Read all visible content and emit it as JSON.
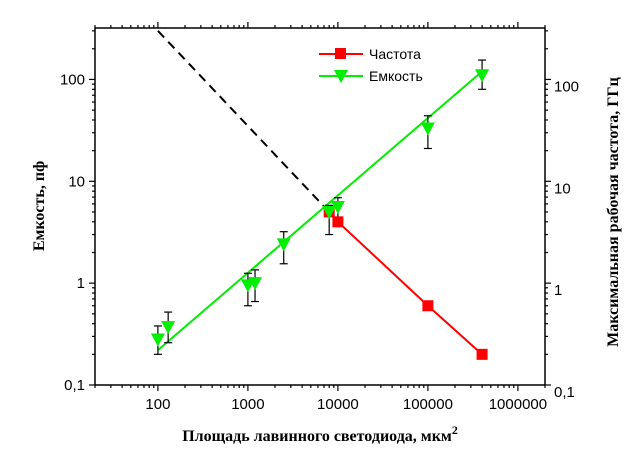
{
  "chart_data": {
    "type": "line",
    "xlabel": "Площадь лавинного светодиода, мкм",
    "xlabel_sup": "2",
    "ylabel": "Емкость, пф",
    "y2label": "Максимальная рабочая частота, ГГц",
    "x_scale": "log",
    "y_scale": "log",
    "y2_scale": "log",
    "xlim": [
      20,
      2000000
    ],
    "ylim": [
      0.1,
      320
    ],
    "y2lim": [
      0.1,
      320
    ],
    "xticks": [
      {
        "value": 100,
        "label": "100"
      },
      {
        "value": 1000,
        "label": "1000"
      },
      {
        "value": 10000,
        "label": "10000"
      },
      {
        "value": 100000,
        "label": "100000"
      },
      {
        "value": 1000000,
        "label": "1000000"
      }
    ],
    "yticks": [
      {
        "value": 0.1,
        "label": "0,1"
      },
      {
        "value": 1,
        "label": "1"
      },
      {
        "value": 10,
        "label": "10"
      },
      {
        "value": 100,
        "label": "100"
      }
    ],
    "y2ticks": [
      {
        "value": 0.1,
        "label": "0,1"
      },
      {
        "value": 1,
        "label": "1"
      },
      {
        "value": 10,
        "label": "10"
      },
      {
        "value": 100,
        "label": "100"
      }
    ],
    "legend_position": "top-right-inside",
    "series": [
      {
        "name": "Частота",
        "axis": "right",
        "color": "#ff0000",
        "marker": "square",
        "x": [
          8000,
          10000,
          100000,
          400000
        ],
        "y": [
          5,
          4,
          0.6,
          0.2
        ]
      },
      {
        "name": "Емкость",
        "axis": "left",
        "color": "#00ee00",
        "marker": "triangle-down",
        "x": [
          100,
          130,
          1000,
          1200,
          2500,
          8000,
          10000,
          100000,
          400000
        ],
        "y": [
          0.28,
          0.37,
          0.95,
          1.0,
          2.4,
          5.0,
          5.6,
          33,
          110
        ],
        "err_low": [
          0.2,
          0.26,
          0.6,
          0.66,
          1.55,
          3.0,
          4.3,
          21,
          80
        ],
        "err_high": [
          0.38,
          0.52,
          1.25,
          1.35,
          3.2,
          5.8,
          6.9,
          44,
          155
        ]
      }
    ],
    "fit_line": {
      "color": "#00ee00",
      "x": [
        100,
        400000
      ],
      "y": [
        0.22,
        120
      ]
    },
    "extrapolation_line": {
      "color": "#000000",
      "style": "dashed",
      "x": [
        100,
        8000
      ],
      "y": [
        300,
        5
      ]
    }
  }
}
